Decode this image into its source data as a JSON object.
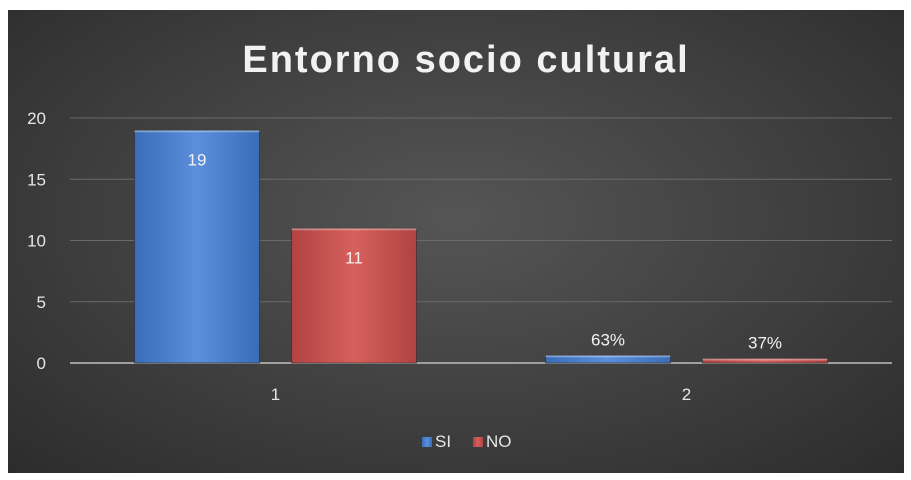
{
  "chart_data": {
    "type": "bar",
    "title": "Entorno socio cultural",
    "xlabel": "",
    "ylabel": "",
    "categories": [
      "1",
      "2"
    ],
    "series": [
      {
        "name": "SI",
        "color": "#4a7fcf",
        "values": [
          19,
          0.63
        ],
        "labels": [
          "19",
          "63%"
        ]
      },
      {
        "name": "NO",
        "color": "#c9504d",
        "values": [
          11,
          0.37
        ],
        "labels": [
          "11",
          "37%"
        ]
      }
    ],
    "ylim": [
      0,
      20
    ],
    "yticks": [
      0,
      5,
      10,
      15,
      20
    ],
    "grid": true,
    "legend_position": "bottom"
  }
}
